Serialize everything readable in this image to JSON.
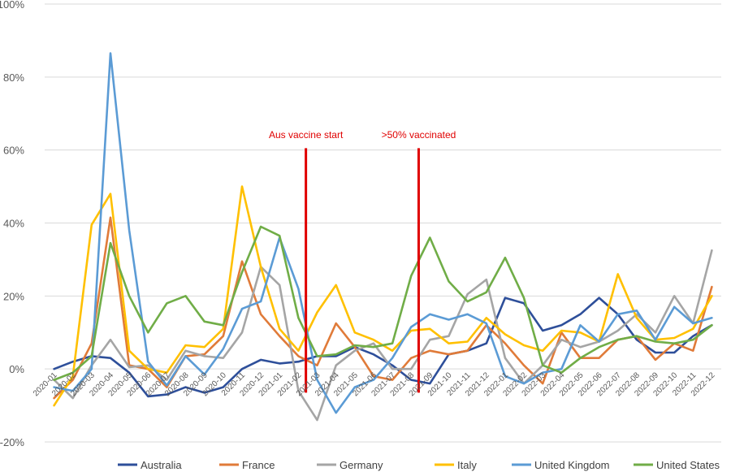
{
  "chart_data": {
    "type": "line",
    "title": "",
    "xlabel": "",
    "ylabel": "",
    "ylim": [
      -20,
      100
    ],
    "yticks": [
      -20,
      0,
      20,
      40,
      60,
      80,
      100
    ],
    "ytick_labels": [
      "-20%",
      "0%",
      "20%",
      "40%",
      "60%",
      "80%",
      "100%"
    ],
    "grid": true,
    "legend_position": "bottom",
    "x": [
      "2020-01",
      "2020-02",
      "2020-03",
      "2020-04",
      "2020-05",
      "2020-06",
      "2020-07",
      "2020-08",
      "2020-09",
      "2020-10",
      "2020-11",
      "2020-12",
      "2021-01",
      "2021-02",
      "2021-03",
      "2021-04",
      "2021-05",
      "2021-06",
      "2021-07",
      "2021-08",
      "2021-09",
      "2021-10",
      "2021-11",
      "2021-12",
      "2022-01",
      "2022-02",
      "2022-03",
      "2022-04",
      "2022-05",
      "2022-06",
      "2022-07",
      "2022-08",
      "2022-09",
      "2022-10",
      "2022-11",
      "2022-12"
    ],
    "x_tick_labels": [
      "2020-01",
      "2020-02",
      "2020-03",
      "2020-04",
      "2020-05",
      "2020-06",
      "2020-07",
      "2020-08",
      "2020-09",
      "2020-10",
      "2020-11",
      "2020-12",
      "2021-01",
      "2021-02",
      "2021-03",
      "2021-04",
      "2021-05",
      "2021-06",
      "2021-07",
      "2021-08",
      "2021-09",
      "2021-10",
      "2021-11",
      "2021-12",
      "2022-01",
      "2022-02",
      "2022-03",
      "2022-04",
      "2022-05",
      "2022-06",
      "2022-07",
      "2022-08",
      "2022-09",
      "2022-10",
      "2022-11",
      "2022-12"
    ],
    "series": [
      {
        "name": "Australia",
        "color": "#2e4f9a",
        "values": [
          0,
          2,
          3.5,
          3,
          -1,
          -7.5,
          -7,
          -5,
          -6.5,
          -5,
          0,
          2.5,
          1.5,
          2,
          3.5,
          3.5,
          6,
          4,
          1,
          -3,
          -4,
          4,
          5,
          7,
          19.5,
          18,
          10.5,
          12,
          15,
          19.5,
          15,
          8,
          4.5,
          4.5,
          9,
          12
        ]
      },
      {
        "name": "France",
        "color": "#e07b39",
        "values": [
          -8,
          -3,
          7,
          41.5,
          1,
          0,
          -5,
          3.5,
          4,
          9,
          29.5,
          15,
          9,
          3.5,
          1,
          12.5,
          6,
          -2,
          -3,
          3,
          5,
          4,
          5,
          12,
          7,
          1,
          -4,
          10,
          3,
          3,
          8,
          9,
          2.5,
          7,
          5,
          22.5
        ]
      },
      {
        "name": "Germany",
        "color": "#a5a5a5",
        "values": [
          -3,
          -8,
          1,
          8,
          0.5,
          1,
          -3,
          5,
          3.5,
          3,
          10,
          28,
          23,
          -6,
          -14,
          1,
          5,
          7,
          0,
          0,
          8,
          9,
          20.5,
          24.5,
          3,
          -4,
          1,
          8,
          6,
          7.5,
          10.5,
          15,
          10,
          20,
          12.5,
          32.5
        ]
      },
      {
        "name": "Italy",
        "color": "#ffc000",
        "values": [
          -10,
          -2,
          39.5,
          48,
          5,
          0,
          -1,
          6.5,
          6,
          11,
          50,
          28,
          11,
          5,
          15.5,
          23,
          10,
          8,
          5,
          10.5,
          11,
          7,
          7.5,
          14,
          9.5,
          6.5,
          5,
          10.5,
          10,
          7.5,
          26,
          14,
          8,
          8.5,
          11,
          20
        ]
      },
      {
        "name": "United Kingdom",
        "color": "#5b9bd5",
        "values": [
          -5,
          -6,
          0,
          86.5,
          38,
          2,
          -4.5,
          3.5,
          -1.5,
          5.5,
          16.5,
          18.5,
          36,
          22,
          -3,
          -12,
          -5,
          -3,
          3,
          11.5,
          15,
          13.5,
          15,
          12.5,
          -2,
          -4,
          -1,
          0,
          12,
          7.5,
          15,
          16,
          8,
          17,
          12.5,
          14
        ]
      },
      {
        "name": "United States",
        "color": "#70ad47",
        "values": [
          -3,
          -1,
          3.5,
          34.5,
          20,
          10,
          18,
          20,
          13,
          12,
          26.5,
          39,
          36.5,
          14,
          3.5,
          4,
          6.5,
          6,
          7,
          25.5,
          36,
          24,
          18.5,
          21,
          30.5,
          19.5,
          1,
          -1,
          3,
          6,
          8,
          9,
          7.5,
          7,
          8,
          12
        ]
      }
    ],
    "annotations": [
      {
        "text": "Aus vaccine start",
        "x": "2021-02"
      },
      {
        "text": ">50% vaccinated",
        "x": "2021-08"
      }
    ]
  }
}
